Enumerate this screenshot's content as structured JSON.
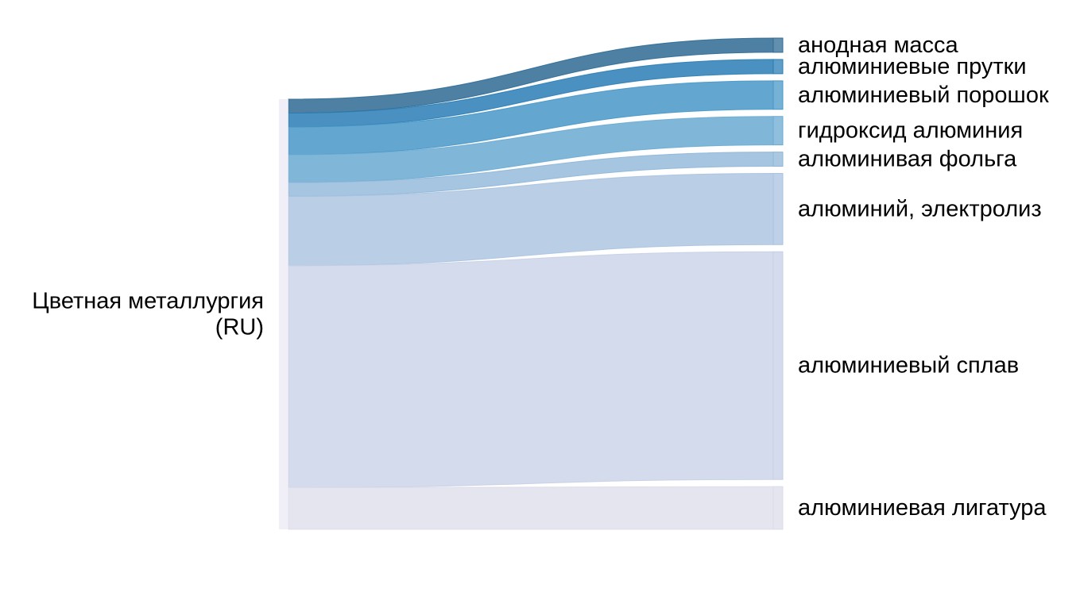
{
  "chart_data": {
    "type": "sankey",
    "source": {
      "label_lines": [
        "Цветная металлургия",
        "(RU)"
      ]
    },
    "flows": [
      {
        "target": "анодная масса",
        "value": 1.0,
        "color": "#2f6a93"
      },
      {
        "target": "алюминиевые прутки",
        "value": 1.0,
        "color": "#2a7db5"
      },
      {
        "target": "алюминиевый порошок",
        "value": 2.0,
        "color": "#4897c8"
      },
      {
        "target": "гидроксид алюминия",
        "value": 2.0,
        "color": "#6aaad2"
      },
      {
        "target": "алюминивая фольга",
        "value": 1.0,
        "color": "#8fb6d9"
      },
      {
        "target": "алюминий, электролиз",
        "value": 5.0,
        "color": "#a9c2e0"
      },
      {
        "target": "алюминиевый сплав",
        "value": 16.0,
        "color": "#c6cfe5"
      },
      {
        "target": "алюминиевая лигатура",
        "value": 3.0,
        "color": "#dcdcea"
      }
    ]
  }
}
